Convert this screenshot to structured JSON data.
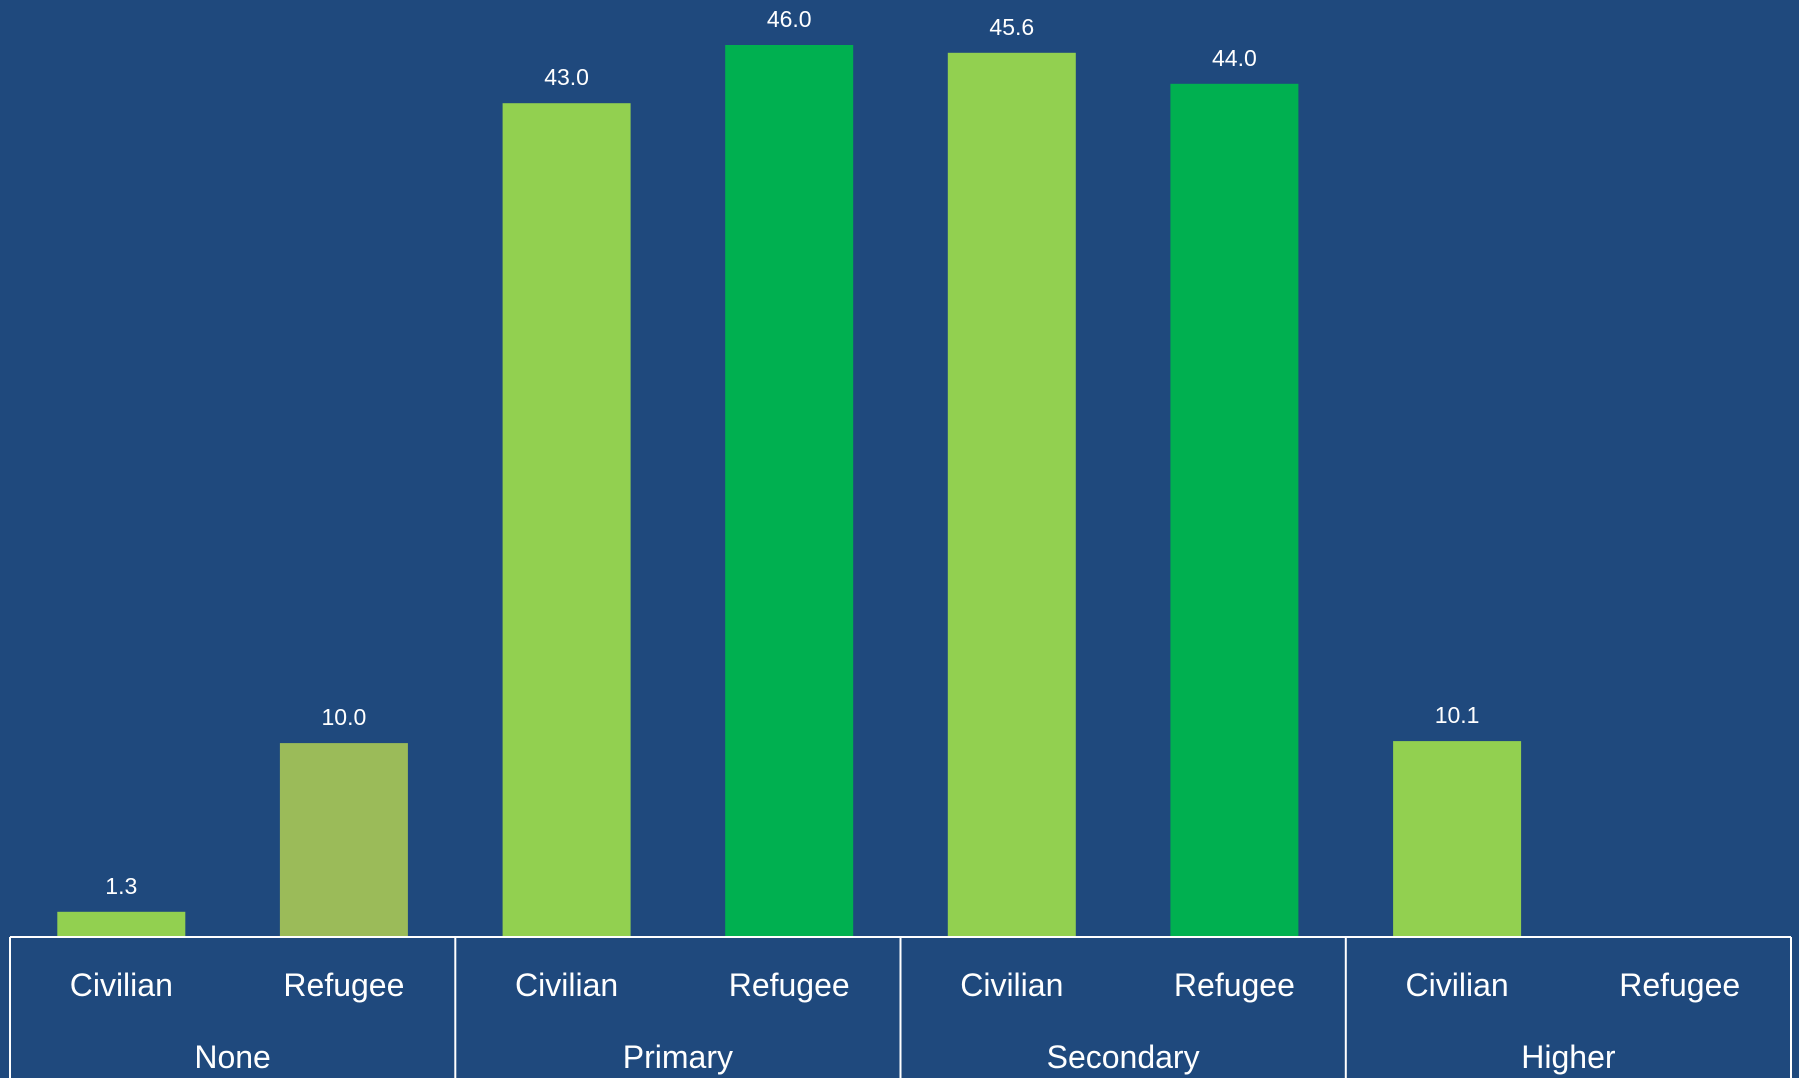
{
  "chart_data": {
    "type": "bar",
    "title": "",
    "xlabel": "",
    "ylabel": "",
    "ylim": [
      0,
      47.5
    ],
    "grid": false,
    "legend": "none",
    "value_format_decimals": 1,
    "groups": [
      {
        "label": "None",
        "bars": [
          {
            "label": "Civilian",
            "value": 1.3,
            "color": "#92d050"
          },
          {
            "label": "Refugee",
            "value": 10.0,
            "color": "#9bbb59"
          }
        ]
      },
      {
        "label": "Primary",
        "bars": [
          {
            "label": "Civilian",
            "value": 43.0,
            "color": "#92d050"
          },
          {
            "label": "Refugee",
            "value": 46.0,
            "color": "#00b050"
          }
        ]
      },
      {
        "label": "Secondary",
        "bars": [
          {
            "label": "Civilian",
            "value": 45.6,
            "color": "#92d050"
          },
          {
            "label": "Refugee",
            "value": 44.0,
            "color": "#00b050"
          }
        ]
      },
      {
        "label": "Higher",
        "bars": [
          {
            "label": "Civilian",
            "value": 10.1,
            "color": "#92d050"
          },
          {
            "label": "Refugee",
            "value": null,
            "color": "#00b050"
          }
        ]
      }
    ]
  },
  "colors": {
    "background": "#1f497d",
    "text": "#ffffff",
    "axis_lines": "#ffffff"
  }
}
